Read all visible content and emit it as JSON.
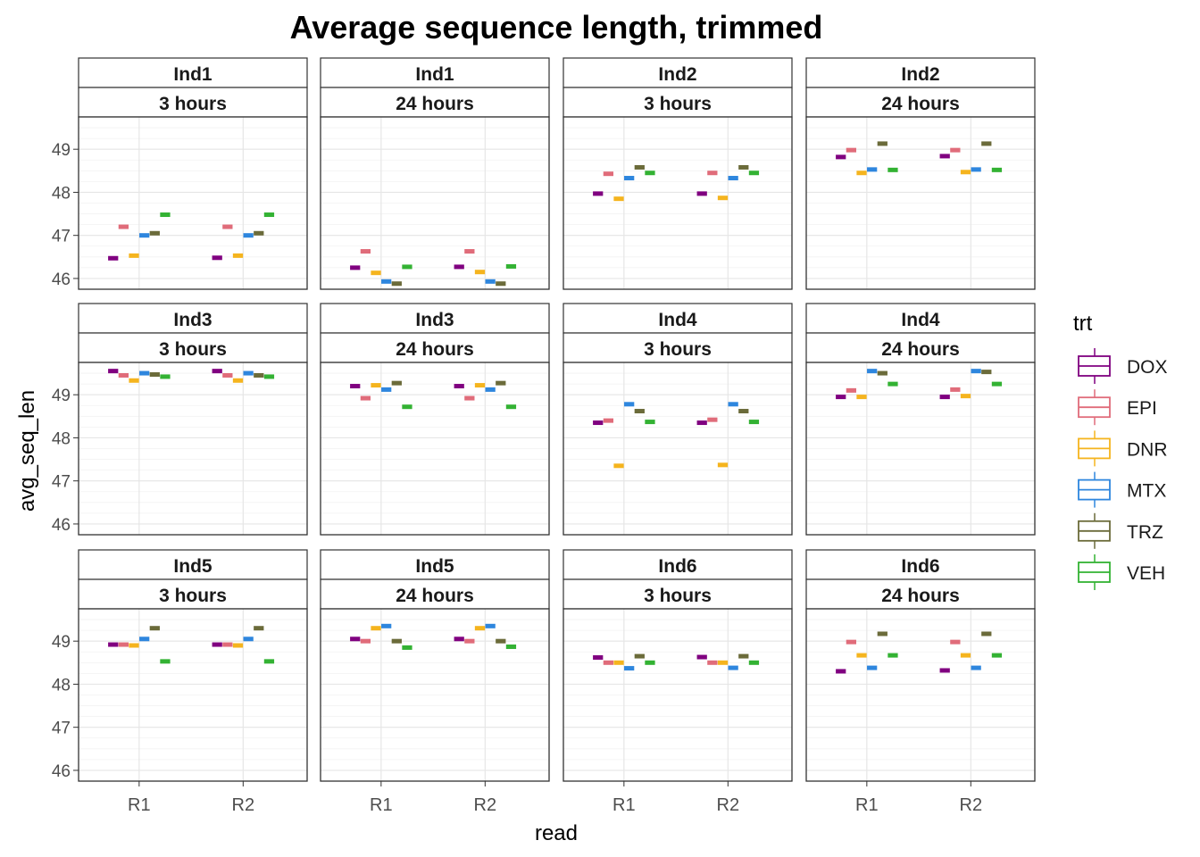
{
  "chart_data": {
    "type": "boxplot",
    "title": "Average sequence length, trimmed",
    "xlabel": "read",
    "ylabel": "avg_seq_len",
    "ylim": [
      45.75,
      49.75
    ],
    "yticks": [
      "46",
      "47",
      "48",
      "49"
    ],
    "categories": [
      "R1",
      "R2"
    ],
    "legend": {
      "title": "trt",
      "position": "right",
      "items": [
        {
          "name": "DOX",
          "color": "#800080"
        },
        {
          "name": "EPI",
          "color": "#E06C7A"
        },
        {
          "name": "DNR",
          "color": "#F5B41E"
        },
        {
          "name": "MTX",
          "color": "#2E86DE"
        },
        {
          "name": "TRZ",
          "color": "#6B6B3A"
        },
        {
          "name": "VEH",
          "color": "#33B233"
        }
      ]
    },
    "grid": true,
    "facets": [
      {
        "ind": "Ind1",
        "time": "3 hours",
        "values": {
          "R1": [
            46.47,
            47.2,
            46.53,
            47.0,
            47.05,
            47.48
          ],
          "R2": [
            46.48,
            47.2,
            46.53,
            47.0,
            47.05,
            47.48
          ]
        }
      },
      {
        "ind": "Ind1",
        "time": "24 hours",
        "values": {
          "R1": [
            46.25,
            46.63,
            46.13,
            45.93,
            45.88,
            46.27
          ],
          "R2": [
            46.27,
            46.63,
            46.15,
            45.93,
            45.88,
            46.28
          ]
        }
      },
      {
        "ind": "Ind2",
        "time": "3 hours",
        "values": {
          "R1": [
            47.97,
            48.43,
            47.85,
            48.33,
            48.58,
            48.45
          ],
          "R2": [
            47.97,
            48.45,
            47.87,
            48.33,
            48.58,
            48.45
          ]
        }
      },
      {
        "ind": "Ind2",
        "time": "24 hours",
        "values": {
          "R1": [
            48.82,
            48.98,
            48.45,
            48.53,
            49.13,
            48.52
          ],
          "R2": [
            48.84,
            48.98,
            48.47,
            48.53,
            49.13,
            48.52
          ]
        }
      },
      {
        "ind": "Ind3",
        "time": "3 hours",
        "values": {
          "R1": [
            49.55,
            49.45,
            49.33,
            49.5,
            49.47,
            49.42
          ],
          "R2": [
            49.55,
            49.45,
            49.33,
            49.5,
            49.45,
            49.42
          ]
        }
      },
      {
        "ind": "Ind3",
        "time": "24 hours",
        "values": {
          "R1": [
            49.2,
            48.92,
            49.22,
            49.12,
            49.27,
            48.72
          ],
          "R2": [
            49.2,
            48.92,
            49.22,
            49.12,
            49.27,
            48.72
          ]
        }
      },
      {
        "ind": "Ind4",
        "time": "3 hours",
        "values": {
          "R1": [
            48.35,
            48.4,
            47.35,
            48.78,
            48.62,
            48.37
          ],
          "R2": [
            48.35,
            48.42,
            47.37,
            48.78,
            48.62,
            48.37
          ]
        }
      },
      {
        "ind": "Ind4",
        "time": "24 hours",
        "values": {
          "R1": [
            48.95,
            49.1,
            48.95,
            49.55,
            49.5,
            49.25
          ],
          "R2": [
            48.95,
            49.12,
            48.97,
            49.55,
            49.53,
            49.25
          ]
        }
      },
      {
        "ind": "Ind5",
        "time": "3 hours",
        "values": {
          "R1": [
            48.92,
            48.92,
            48.9,
            49.05,
            49.3,
            48.53
          ],
          "R2": [
            48.92,
            48.92,
            48.9,
            49.05,
            49.3,
            48.53
          ]
        }
      },
      {
        "ind": "Ind5",
        "time": "24 hours",
        "values": {
          "R1": [
            49.05,
            49.0,
            49.3,
            49.35,
            49.0,
            48.85
          ],
          "R2": [
            49.05,
            49.0,
            49.3,
            49.35,
            49.0,
            48.87
          ]
        }
      },
      {
        "ind": "Ind6",
        "time": "3 hours",
        "values": {
          "R1": [
            48.62,
            48.5,
            48.5,
            48.37,
            48.65,
            48.5
          ],
          "R2": [
            48.63,
            48.5,
            48.5,
            48.38,
            48.65,
            48.5
          ]
        }
      },
      {
        "ind": "Ind6",
        "time": "24 hours",
        "values": {
          "R1": [
            48.3,
            48.98,
            48.67,
            48.38,
            49.17,
            48.67
          ],
          "R2": [
            48.32,
            48.98,
            48.67,
            48.38,
            49.17,
            48.67
          ]
        }
      }
    ]
  }
}
